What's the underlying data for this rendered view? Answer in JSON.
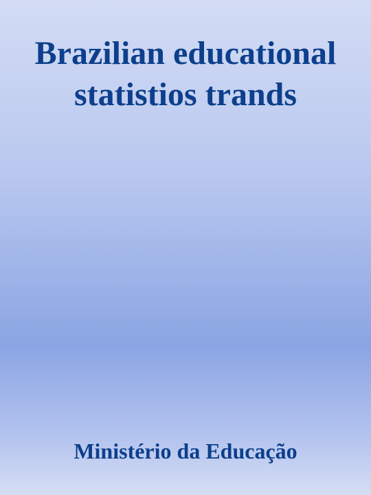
{
  "cover": {
    "title": "Brazilian educational statistios trands",
    "author": "Ministério da Educação"
  }
}
